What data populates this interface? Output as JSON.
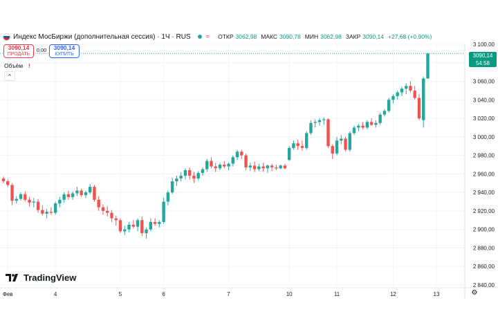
{
  "header": {
    "title": "Индекс МосБиржи (дополнительная сессия) · 1Ч · RUS",
    "wave_icon": "≈",
    "open_label": "ОТКР",
    "open_value": "3062,98",
    "high_label": "МАКС",
    "high_value": "3090,78",
    "low_label": "МИН",
    "low_value": "3062,98",
    "close_label": "ЗАКР",
    "close_value": "3090,14",
    "change_value": "+27,68 (+0,90%)",
    "flag_colors": [
      "#ffffff",
      "#1c57a5",
      "#d52b1e"
    ]
  },
  "trade": {
    "sell_price": "3090,14",
    "sell_label": "ПРОДАТЬ",
    "spread": "0,00",
    "buy_price": "3090,14",
    "buy_label": "КУПИТЬ"
  },
  "volume": {
    "label": "Объём",
    "warning": "!",
    "collapse_icon": "^"
  },
  "price_tag": {
    "price": "3090,14",
    "countdown": "54:58"
  },
  "x_axis_labels": [
    "Фев",
    "4",
    "5",
    "6",
    "7",
    "10",
    "11",
    "12",
    "13"
  ],
  "brand": {
    "name": "TradingView"
  },
  "colors": {
    "up": "#26a69a",
    "down": "#ef5350",
    "accent": "#089981",
    "grid": "#f0f3fa"
  },
  "chart_data": {
    "type": "candlestick",
    "y_ticks": [
      "3 100,00",
      "3 080,00",
      "3 060,00",
      "3 040,00",
      "3 020,00",
      "3 000,00",
      "2 980,00",
      "2 960,00",
      "2 940,00",
      "2 920,00",
      "2 900,00",
      "2 880,00",
      "2 860,00",
      "2 840,00"
    ],
    "ylim": [
      2840,
      3100
    ],
    "last_price": 3090.14,
    "candles": [
      {
        "o": 2955,
        "h": 2957,
        "l": 2950,
        "c": 2952
      },
      {
        "o": 2952,
        "h": 2954,
        "l": 2946,
        "c": 2948
      },
      {
        "o": 2948,
        "h": 2950,
        "l": 2926,
        "c": 2931
      },
      {
        "o": 2931,
        "h": 2936,
        "l": 2928,
        "c": 2933
      },
      {
        "o": 2933,
        "h": 2940,
        "l": 2931,
        "c": 2938
      },
      {
        "o": 2938,
        "h": 2941,
        "l": 2930,
        "c": 2932
      },
      {
        "o": 2932,
        "h": 2935,
        "l": 2925,
        "c": 2929
      },
      {
        "o": 2929,
        "h": 2934,
        "l": 2924,
        "c": 2930
      },
      {
        "o": 2930,
        "h": 2933,
        "l": 2918,
        "c": 2921
      },
      {
        "o": 2921,
        "h": 2926,
        "l": 2915,
        "c": 2917
      },
      {
        "o": 2917,
        "h": 2922,
        "l": 2912,
        "c": 2919
      },
      {
        "o": 2919,
        "h": 2924,
        "l": 2916,
        "c": 2918
      },
      {
        "o": 2918,
        "h": 2930,
        "l": 2916,
        "c": 2928
      },
      {
        "o": 2928,
        "h": 2935,
        "l": 2924,
        "c": 2932
      },
      {
        "o": 2932,
        "h": 2940,
        "l": 2929,
        "c": 2938
      },
      {
        "o": 2938,
        "h": 2942,
        "l": 2932,
        "c": 2935
      },
      {
        "o": 2935,
        "h": 2941,
        "l": 2932,
        "c": 2939
      },
      {
        "o": 2939,
        "h": 2946,
        "l": 2936,
        "c": 2942
      },
      {
        "o": 2942,
        "h": 2944,
        "l": 2935,
        "c": 2937
      },
      {
        "o": 2937,
        "h": 2942,
        "l": 2934,
        "c": 2940
      },
      {
        "o": 2940,
        "h": 2949,
        "l": 2938,
        "c": 2946
      },
      {
        "o": 2946,
        "h": 2948,
        "l": 2930,
        "c": 2932
      },
      {
        "o": 2932,
        "h": 2936,
        "l": 2920,
        "c": 2924
      },
      {
        "o": 2924,
        "h": 2927,
        "l": 2916,
        "c": 2920
      },
      {
        "o": 2920,
        "h": 2925,
        "l": 2914,
        "c": 2918
      },
      {
        "o": 2918,
        "h": 2921,
        "l": 2908,
        "c": 2912
      },
      {
        "o": 2912,
        "h": 2915,
        "l": 2904,
        "c": 2910
      },
      {
        "o": 2910,
        "h": 2912,
        "l": 2896,
        "c": 2898
      },
      {
        "o": 2898,
        "h": 2904,
        "l": 2894,
        "c": 2900
      },
      {
        "o": 2900,
        "h": 2908,
        "l": 2897,
        "c": 2905
      },
      {
        "o": 2905,
        "h": 2910,
        "l": 2901,
        "c": 2903
      },
      {
        "o": 2903,
        "h": 2912,
        "l": 2898,
        "c": 2910
      },
      {
        "o": 2910,
        "h": 2914,
        "l": 2893,
        "c": 2896
      },
      {
        "o": 2896,
        "h": 2902,
        "l": 2890,
        "c": 2900
      },
      {
        "o": 2900,
        "h": 2912,
        "l": 2898,
        "c": 2908
      },
      {
        "o": 2908,
        "h": 2912,
        "l": 2904,
        "c": 2906
      },
      {
        "o": 2906,
        "h": 2910,
        "l": 2902,
        "c": 2908
      },
      {
        "o": 2908,
        "h": 2934,
        "l": 2906,
        "c": 2930
      },
      {
        "o": 2930,
        "h": 2942,
        "l": 2926,
        "c": 2940
      },
      {
        "o": 2940,
        "h": 2956,
        "l": 2938,
        "c": 2952
      },
      {
        "o": 2952,
        "h": 2958,
        "l": 2947,
        "c": 2955
      },
      {
        "o": 2955,
        "h": 2962,
        "l": 2952,
        "c": 2958
      },
      {
        "o": 2958,
        "h": 2966,
        "l": 2954,
        "c": 2964
      },
      {
        "o": 2964,
        "h": 2967,
        "l": 2954,
        "c": 2958
      },
      {
        "o": 2958,
        "h": 2962,
        "l": 2950,
        "c": 2955
      },
      {
        "o": 2955,
        "h": 2963,
        "l": 2953,
        "c": 2961
      },
      {
        "o": 2961,
        "h": 2967,
        "l": 2958,
        "c": 2965
      },
      {
        "o": 2965,
        "h": 2976,
        "l": 2962,
        "c": 2974
      },
      {
        "o": 2974,
        "h": 2978,
        "l": 2966,
        "c": 2968
      },
      {
        "o": 2968,
        "h": 2972,
        "l": 2962,
        "c": 2966
      },
      {
        "o": 2966,
        "h": 2972,
        "l": 2964,
        "c": 2970
      },
      {
        "o": 2970,
        "h": 2974,
        "l": 2966,
        "c": 2968
      },
      {
        "o": 2968,
        "h": 2972,
        "l": 2964,
        "c": 2971
      },
      {
        "o": 2971,
        "h": 2980,
        "l": 2968,
        "c": 2978
      },
      {
        "o": 2978,
        "h": 2986,
        "l": 2975,
        "c": 2984
      },
      {
        "o": 2984,
        "h": 2986,
        "l": 2976,
        "c": 2980
      },
      {
        "o": 2980,
        "h": 2982,
        "l": 2964,
        "c": 2967
      },
      {
        "o": 2967,
        "h": 2972,
        "l": 2963,
        "c": 2969
      },
      {
        "o": 2969,
        "h": 2973,
        "l": 2962,
        "c": 2965
      },
      {
        "o": 2965,
        "h": 2971,
        "l": 2963,
        "c": 2968
      },
      {
        "o": 2968,
        "h": 2972,
        "l": 2962,
        "c": 2966
      },
      {
        "o": 2966,
        "h": 2970,
        "l": 2961,
        "c": 2969
      },
      {
        "o": 2969,
        "h": 2971,
        "l": 2963,
        "c": 2967
      },
      {
        "o": 2967,
        "h": 2970,
        "l": 2964,
        "c": 2966
      },
      {
        "o": 2966,
        "h": 2970,
        "l": 2965,
        "c": 2969
      },
      {
        "o": 2969,
        "h": 2971,
        "l": 2965,
        "c": 2966
      },
      {
        "o": 2975,
        "h": 2990,
        "l": 2974,
        "c": 2988
      },
      {
        "o": 2988,
        "h": 2996,
        "l": 2986,
        "c": 2993
      },
      {
        "o": 2993,
        "h": 2997,
        "l": 2986,
        "c": 2990
      },
      {
        "o": 2990,
        "h": 2996,
        "l": 2985,
        "c": 2988
      },
      {
        "o": 2988,
        "h": 3006,
        "l": 2986,
        "c": 3004
      },
      {
        "o": 3004,
        "h": 3018,
        "l": 3002,
        "c": 3015
      },
      {
        "o": 3015,
        "h": 3019,
        "l": 3010,
        "c": 3016
      },
      {
        "o": 3016,
        "h": 3020,
        "l": 3012,
        "c": 3018
      },
      {
        "o": 3018,
        "h": 3021,
        "l": 3013,
        "c": 3019
      },
      {
        "o": 3019,
        "h": 3020,
        "l": 2988,
        "c": 2990
      },
      {
        "o": 2990,
        "h": 2992,
        "l": 2976,
        "c": 2982
      },
      {
        "o": 2982,
        "h": 3000,
        "l": 2980,
        "c": 2996
      },
      {
        "o": 2996,
        "h": 3002,
        "l": 2992,
        "c": 2998
      },
      {
        "o": 2998,
        "h": 3000,
        "l": 2984,
        "c": 2986
      },
      {
        "o": 2986,
        "h": 3006,
        "l": 2984,
        "c": 3004
      },
      {
        "o": 3004,
        "h": 3012,
        "l": 3002,
        "c": 3010
      },
      {
        "o": 3010,
        "h": 3014,
        "l": 3006,
        "c": 3012
      },
      {
        "o": 3012,
        "h": 3016,
        "l": 3008,
        "c": 3010
      },
      {
        "o": 3010,
        "h": 3018,
        "l": 3008,
        "c": 3016
      },
      {
        "o": 3016,
        "h": 3020,
        "l": 3012,
        "c": 3013
      },
      {
        "o": 3013,
        "h": 3018,
        "l": 3010,
        "c": 3015
      },
      {
        "o": 3015,
        "h": 3026,
        "l": 3013,
        "c": 3024
      },
      {
        "o": 3024,
        "h": 3030,
        "l": 3022,
        "c": 3028
      },
      {
        "o": 3028,
        "h": 3042,
        "l": 3026,
        "c": 3040
      },
      {
        "o": 3040,
        "h": 3046,
        "l": 3036,
        "c": 3044
      },
      {
        "o": 3044,
        "h": 3050,
        "l": 3040,
        "c": 3048
      },
      {
        "o": 3048,
        "h": 3054,
        "l": 3044,
        "c": 3052
      },
      {
        "o": 3052,
        "h": 3058,
        "l": 3046,
        "c": 3055
      },
      {
        "o": 3055,
        "h": 3060,
        "l": 3048,
        "c": 3050
      },
      {
        "o": 3050,
        "h": 3055,
        "l": 3040,
        "c": 3042
      },
      {
        "o": 3042,
        "h": 3046,
        "l": 3018,
        "c": 3020
      },
      {
        "o": 3018,
        "h": 3065,
        "l": 3010,
        "c": 3063
      },
      {
        "o": 3062.98,
        "h": 3090.78,
        "l": 3062.98,
        "c": 3090.14
      }
    ],
    "x_ticks": [
      {
        "label": "Фев",
        "index": 1
      },
      {
        "label": "4",
        "index": 12
      },
      {
        "label": "5",
        "index": 27
      },
      {
        "label": "6",
        "index": 37
      },
      {
        "label": "7",
        "index": 52
      },
      {
        "label": "10",
        "index": 66
      },
      {
        "label": "11",
        "index": 77
      },
      {
        "label": "12",
        "index": 90
      },
      {
        "label": "13",
        "index": 100
      }
    ]
  }
}
